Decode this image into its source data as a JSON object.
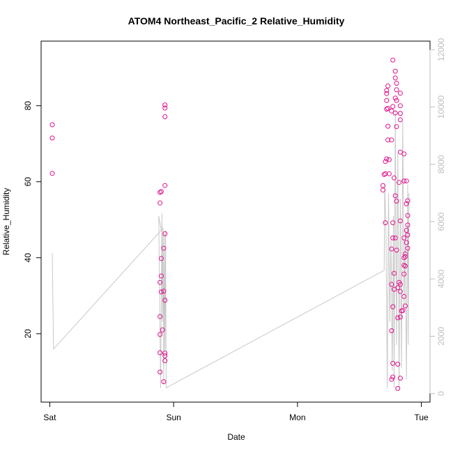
{
  "chart_data": {
    "type": "scatter",
    "title": "ATOM4 Northeast_Pacific_2 Relative_Humidity",
    "xlabel": "Date",
    "ylabel": "Relative_Humidity",
    "x_tick_labels": [
      "Sat",
      "Sun",
      "Mon",
      "Tue"
    ],
    "x_ticks": [
      0,
      1,
      2,
      3
    ],
    "x_unit": "days since Sat 00:00",
    "xlim": [
      -0.07,
      3.07
    ],
    "ylim": [
      2,
      97
    ],
    "y_ticks": [
      20,
      40,
      60,
      80
    ],
    "y2lim": [
      -300,
      12300
    ],
    "y2_ticks": [
      0,
      2000,
      4000,
      6000,
      8000,
      10000,
      12000
    ],
    "grid": false,
    "colors": {
      "points": "#e0118c",
      "line": "#c8c8c8",
      "right_axis": "#bdbdbd",
      "frame": "#000000"
    },
    "series": [
      {
        "axis": "left",
        "marker": "open-circle",
        "points": [
          {
            "x": 0.02,
            "y": 75.0
          },
          {
            "x": 0.02,
            "y": 71.5
          },
          {
            "x": 0.02,
            "y": 62.2
          },
          {
            "x": 0.89,
            "y": 57.2
          },
          {
            "x": 0.89,
            "y": 54.4
          },
          {
            "x": 0.89,
            "y": 33.5
          },
          {
            "x": 0.89,
            "y": 24.5
          },
          {
            "x": 0.89,
            "y": 19.8
          },
          {
            "x": 0.89,
            "y": 15.0
          },
          {
            "x": 0.89,
            "y": 9.9
          },
          {
            "x": 0.9,
            "y": 57.4
          },
          {
            "x": 0.9,
            "y": 39.8
          },
          {
            "x": 0.9,
            "y": 35.2
          },
          {
            "x": 0.9,
            "y": 31.0
          },
          {
            "x": 0.91,
            "y": 21.0
          },
          {
            "x": 0.92,
            "y": 42.5
          },
          {
            "x": 0.92,
            "y": 31.2
          },
          {
            "x": 0.92,
            "y": 7.4
          },
          {
            "x": 0.93,
            "y": 80.2
          },
          {
            "x": 0.93,
            "y": 79.4
          },
          {
            "x": 0.93,
            "y": 77.1
          },
          {
            "x": 0.93,
            "y": 59.0
          },
          {
            "x": 0.93,
            "y": 46.3
          },
          {
            "x": 0.93,
            "y": 28.8
          },
          {
            "x": 0.93,
            "y": 14.9
          },
          {
            "x": 0.93,
            "y": 14.2
          },
          {
            "x": 0.93,
            "y": 12.9
          },
          {
            "x": 2.69,
            "y": 59.0
          },
          {
            "x": 2.69,
            "y": 57.8
          },
          {
            "x": 2.7,
            "y": 61.9
          },
          {
            "x": 2.71,
            "y": 62.1
          },
          {
            "x": 2.71,
            "y": 49.2
          },
          {
            "x": 2.71,
            "y": 65.3
          },
          {
            "x": 2.72,
            "y": 66.0
          },
          {
            "x": 2.72,
            "y": 84.0
          },
          {
            "x": 2.72,
            "y": 83.2
          },
          {
            "x": 2.72,
            "y": 81.4
          },
          {
            "x": 2.72,
            "y": 79.1
          },
          {
            "x": 2.73,
            "y": 85.2
          },
          {
            "x": 2.73,
            "y": 79.3
          },
          {
            "x": 2.73,
            "y": 74.6
          },
          {
            "x": 2.73,
            "y": 71.0
          },
          {
            "x": 2.74,
            "y": 65.8
          },
          {
            "x": 2.74,
            "y": 62.1
          },
          {
            "x": 2.76,
            "y": 78.6
          },
          {
            "x": 2.76,
            "y": 71.0
          },
          {
            "x": 2.76,
            "y": 42.3
          },
          {
            "x": 2.76,
            "y": 33.0
          },
          {
            "x": 2.76,
            "y": 20.8
          },
          {
            "x": 2.76,
            "y": 8.0
          },
          {
            "x": 2.77,
            "y": 92.0
          },
          {
            "x": 2.77,
            "y": 79.8
          },
          {
            "x": 2.77,
            "y": 49.2
          },
          {
            "x": 2.77,
            "y": 45.2
          },
          {
            "x": 2.77,
            "y": 27.1
          },
          {
            "x": 2.77,
            "y": 12.2
          },
          {
            "x": 2.77,
            "y": 8.6
          },
          {
            "x": 2.78,
            "y": 61.0
          },
          {
            "x": 2.78,
            "y": 35.9
          },
          {
            "x": 2.78,
            "y": 31.7
          },
          {
            "x": 2.79,
            "y": 89.1
          },
          {
            "x": 2.79,
            "y": 87.3
          },
          {
            "x": 2.79,
            "y": 82.0
          },
          {
            "x": 2.79,
            "y": 78.1
          },
          {
            "x": 2.79,
            "y": 56.3
          },
          {
            "x": 2.79,
            "y": 45.2
          },
          {
            "x": 2.8,
            "y": 85.9
          },
          {
            "x": 2.8,
            "y": 84.2
          },
          {
            "x": 2.8,
            "y": 81.4
          },
          {
            "x": 2.8,
            "y": 74.5
          },
          {
            "x": 2.8,
            "y": 54.9
          },
          {
            "x": 2.8,
            "y": 42.0
          },
          {
            "x": 2.81,
            "y": 32.1
          },
          {
            "x": 2.81,
            "y": 24.2
          },
          {
            "x": 2.81,
            "y": 12.0
          },
          {
            "x": 2.81,
            "y": 5.6
          },
          {
            "x": 2.82,
            "y": 59.8
          },
          {
            "x": 2.82,
            "y": 33.5
          },
          {
            "x": 2.83,
            "y": 83.3
          },
          {
            "x": 2.83,
            "y": 80.0
          },
          {
            "x": 2.83,
            "y": 78.0
          },
          {
            "x": 2.83,
            "y": 76.3
          },
          {
            "x": 2.83,
            "y": 67.8
          },
          {
            "x": 2.83,
            "y": 49.7
          },
          {
            "x": 2.83,
            "y": 33.0
          },
          {
            "x": 2.83,
            "y": 31.1
          },
          {
            "x": 2.83,
            "y": 24.4
          },
          {
            "x": 2.83,
            "y": 8.3
          },
          {
            "x": 2.84,
            "y": 26.0
          },
          {
            "x": 2.85,
            "y": 26.1
          },
          {
            "x": 2.86,
            "y": 67.3
          },
          {
            "x": 2.86,
            "y": 60.2
          },
          {
            "x": 2.86,
            "y": 45.2
          },
          {
            "x": 2.86,
            "y": 40.0
          },
          {
            "x": 2.86,
            "y": 38.0
          },
          {
            "x": 2.86,
            "y": 35.7
          },
          {
            "x": 2.86,
            "y": 29.8
          },
          {
            "x": 2.87,
            "y": 41.0
          },
          {
            "x": 2.87,
            "y": 40.3
          },
          {
            "x": 2.87,
            "y": 37.8
          },
          {
            "x": 2.87,
            "y": 27.3
          },
          {
            "x": 2.88,
            "y": 60.2
          },
          {
            "x": 2.88,
            "y": 54.2
          },
          {
            "x": 2.88,
            "y": 47.2
          },
          {
            "x": 2.88,
            "y": 44.0
          },
          {
            "x": 2.89,
            "y": 55.0
          },
          {
            "x": 2.89,
            "y": 51.1
          },
          {
            "x": 2.89,
            "y": 48.6
          },
          {
            "x": 2.89,
            "y": 46.0
          },
          {
            "x": 2.89,
            "y": 42.5
          }
        ]
      },
      {
        "axis": "right",
        "style": "line",
        "points": [
          {
            "x": 0.02,
            "y": 4900
          },
          {
            "x": 0.03,
            "y": 1550
          },
          {
            "x": 0.9,
            "y": 5700
          },
          {
            "x": 0.88,
            "y": 6200
          },
          {
            "x": 0.895,
            "y": 200
          },
          {
            "x": 0.905,
            "y": 6300
          },
          {
            "x": 0.91,
            "y": 2500
          },
          {
            "x": 0.915,
            "y": 5800
          },
          {
            "x": 0.92,
            "y": 300
          },
          {
            "x": 0.925,
            "y": 5600
          },
          {
            "x": 0.93,
            "y": 1500
          },
          {
            "x": 0.935,
            "y": 5700
          },
          {
            "x": 0.94,
            "y": 200
          },
          {
            "x": 2.7,
            "y": 4300
          },
          {
            "x": 2.705,
            "y": 7300
          },
          {
            "x": 2.715,
            "y": 5500
          },
          {
            "x": 2.725,
            "y": 200
          },
          {
            "x": 2.735,
            "y": 7000
          },
          {
            "x": 2.745,
            "y": 2500
          },
          {
            "x": 2.755,
            "y": 5500
          },
          {
            "x": 2.765,
            "y": 800
          },
          {
            "x": 2.775,
            "y": 6200
          },
          {
            "x": 2.78,
            "y": 200
          },
          {
            "x": 2.79,
            "y": 9900
          },
          {
            "x": 2.8,
            "y": 1700
          },
          {
            "x": 2.81,
            "y": 8400
          },
          {
            "x": 2.82,
            "y": 200
          },
          {
            "x": 2.83,
            "y": 6800
          },
          {
            "x": 2.84,
            "y": 900
          },
          {
            "x": 2.85,
            "y": 9500
          },
          {
            "x": 2.86,
            "y": 3000
          },
          {
            "x": 2.87,
            "y": 5700
          },
          {
            "x": 2.88,
            "y": 500
          },
          {
            "x": 2.89,
            "y": 7300
          },
          {
            "x": 2.895,
            "y": 1700
          },
          {
            "x": 2.9,
            "y": 7000
          }
        ]
      }
    ]
  }
}
